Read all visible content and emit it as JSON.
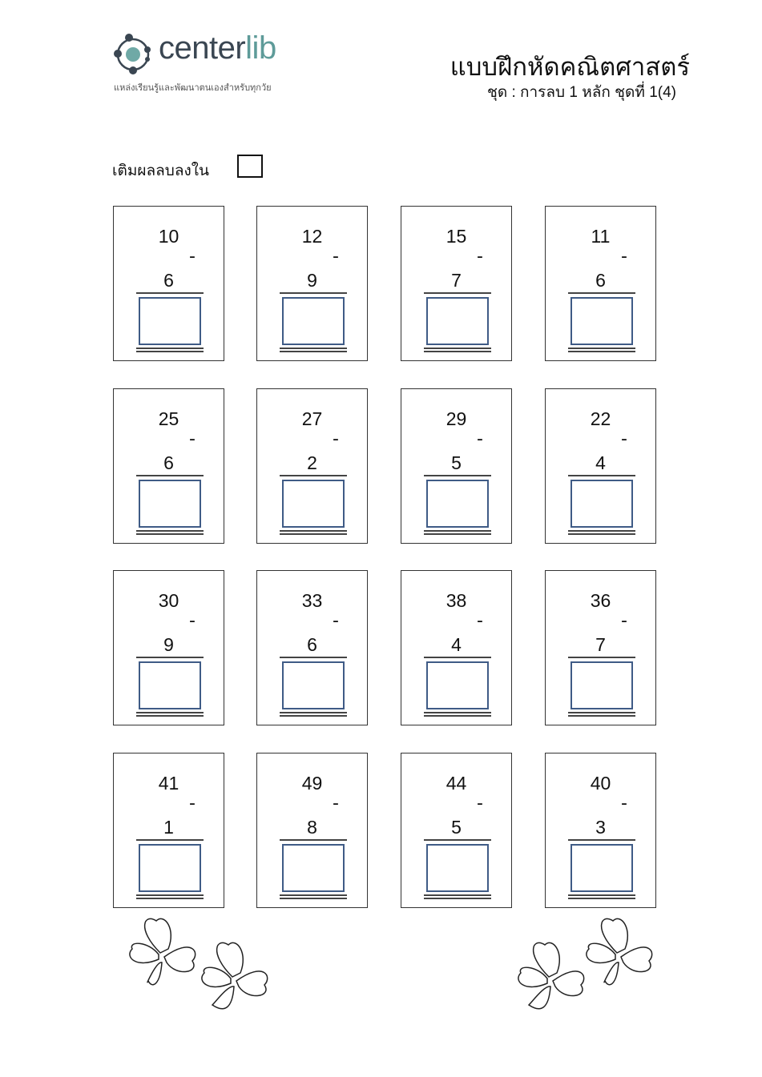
{
  "header": {
    "logo_name_main": "center",
    "logo_name_accent": "lib",
    "logo_tagline": "แหล่งเรียนรู้และพัฒนาตนเองสำหรับทุกวัย",
    "title": "แบบฝึกหัดคณิตศาสตร์",
    "subtitle": "ชุด : การลบ 1 หลัก ชุดที่ 1(4)"
  },
  "instruction": "เติมผลลบลงใน",
  "operator": "-",
  "colors": {
    "answer_box": "#3f5b86",
    "logo_accent": "#5e9b99",
    "logo_dark": "#3a4652"
  },
  "problems": [
    {
      "top": "10",
      "bottom": "6"
    },
    {
      "top": "12",
      "bottom": "9"
    },
    {
      "top": "15",
      "bottom": "7"
    },
    {
      "top": "11",
      "bottom": "6"
    },
    {
      "top": "25",
      "bottom": "6"
    },
    {
      "top": "27",
      "bottom": "2"
    },
    {
      "top": "29",
      "bottom": "5"
    },
    {
      "top": "22",
      "bottom": "4"
    },
    {
      "top": "30",
      "bottom": "9"
    },
    {
      "top": "33",
      "bottom": "6"
    },
    {
      "top": "38",
      "bottom": "4"
    },
    {
      "top": "36",
      "bottom": "7"
    },
    {
      "top": "41",
      "bottom": "1"
    },
    {
      "top": "49",
      "bottom": "8"
    },
    {
      "top": "44",
      "bottom": "5"
    },
    {
      "top": "40",
      "bottom": "3"
    }
  ]
}
